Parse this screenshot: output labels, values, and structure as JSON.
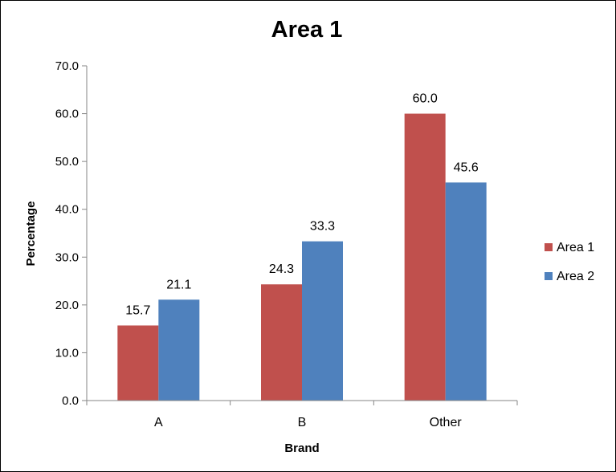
{
  "chart_data": {
    "type": "bar",
    "title": "Area 1",
    "xlabel": "Brand",
    "ylabel": "Percentage",
    "categories": [
      "A",
      "B",
      "Other"
    ],
    "series": [
      {
        "name": "Area 1",
        "values": [
          15.7,
          24.3,
          60.0
        ],
        "labels": [
          "15.7",
          "24.3",
          "60.0"
        ],
        "color": "#C0504D"
      },
      {
        "name": "Area 2",
        "values": [
          21.1,
          33.3,
          45.6
        ],
        "labels": [
          "21.1",
          "33.3",
          "45.6"
        ],
        "color": "#4F81BD"
      }
    ],
    "ylim": [
      0,
      70
    ],
    "yticks": [
      0,
      10,
      20,
      30,
      40,
      50,
      60,
      70
    ],
    "ytick_labels": [
      "0.0",
      "10.0",
      "20.0",
      "30.0",
      "40.0",
      "50.0",
      "60.0",
      "70.0"
    ],
    "grid": false,
    "legend_position": "right"
  }
}
